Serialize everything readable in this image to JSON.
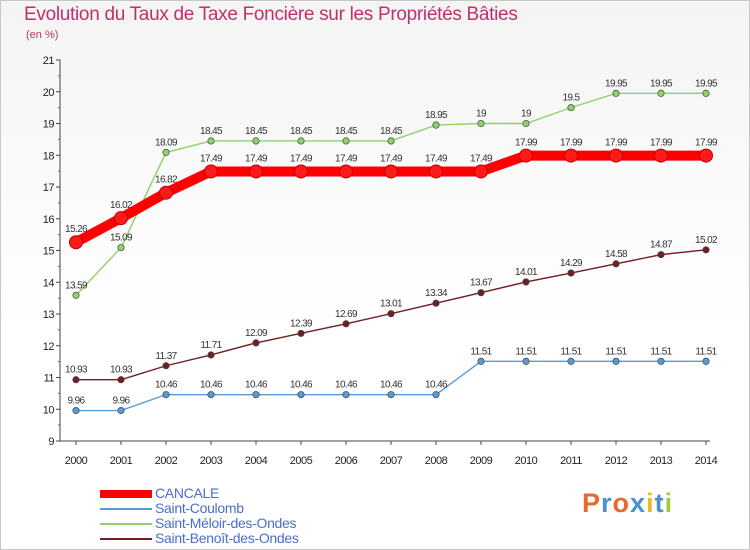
{
  "header": {
    "title": "Evolution du Taux de Taxe Foncière sur les Propriétés Bâties",
    "unit": "(en %)"
  },
  "brand": {
    "name": "Proxiti",
    "colors": [
      "#e9682f",
      "#4a8fd0",
      "#e9682f",
      "#4a8fd0",
      "#f0b821",
      "#4a8fd0",
      "#9fce3d"
    ]
  },
  "chart_data": {
    "type": "line",
    "title": "Evolution du Taux de Taxe Foncière sur les Propriétés Bâties",
    "ylabel": "(en %)",
    "xlabel": "",
    "ylim": [
      9,
      21
    ],
    "yticks": [
      9,
      10,
      11,
      12,
      13,
      14,
      15,
      16,
      17,
      18,
      19,
      20,
      21
    ],
    "categories": [
      "2000",
      "2001",
      "2002",
      "2003",
      "2004",
      "2005",
      "2006",
      "2007",
      "2008",
      "2009",
      "2010",
      "2011",
      "2012",
      "2013",
      "2014"
    ],
    "legend_position": "bottom-left",
    "series": [
      {
        "name": "CANCALE",
        "color": "#ff0000",
        "style": "bold",
        "values": [
          15.26,
          16.02,
          16.82,
          17.49,
          17.49,
          17.49,
          17.49,
          17.49,
          17.49,
          17.49,
          17.99,
          17.99,
          17.99,
          17.99,
          17.99
        ],
        "labels": [
          "15.26",
          "16.02",
          "16.82",
          "17.49",
          "17.49",
          "17.49",
          "17.49",
          "17.49",
          "17.49",
          "17.49",
          "17.99",
          "17.99",
          "17.99",
          "17.99",
          "17.99"
        ]
      },
      {
        "name": "Saint-Coulomb",
        "color": "#5b9bd5",
        "style": "thin",
        "values": [
          9.96,
          9.96,
          10.46,
          10.46,
          10.46,
          10.46,
          10.46,
          10.46,
          10.46,
          11.51,
          11.51,
          11.51,
          11.51,
          11.51,
          11.51
        ],
        "labels": [
          "9.96",
          "9.96",
          "10.46",
          "10.46",
          "10.46",
          "10.46",
          "10.46",
          "10.46",
          "10.46",
          "11.51",
          "11.51",
          "11.51",
          "11.51",
          "11.51",
          "11.51"
        ]
      },
      {
        "name": "Saint-Méloir-des-Ondes",
        "color": "#8fd16a",
        "style": "thin",
        "values": [
          13.59,
          15.09,
          18.09,
          18.45,
          18.45,
          18.45,
          18.45,
          18.45,
          18.95,
          19,
          19,
          19.5,
          19.95,
          19.95,
          19.95
        ],
        "labels": [
          "13.59",
          "15.09",
          "18.09",
          "18.45",
          "18.45",
          "18.45",
          "18.45",
          "18.45",
          "18.95",
          "19",
          "19",
          "19.5",
          "19.95",
          "19.95",
          "19.95"
        ]
      },
      {
        "name": "Saint-Benoît-des-Ondes",
        "color": "#6e1f24",
        "style": "thin",
        "values": [
          10.93,
          10.93,
          11.37,
          11.71,
          12.09,
          12.39,
          12.69,
          13.01,
          13.34,
          13.67,
          14.01,
          14.29,
          14.58,
          14.87,
          15.02
        ],
        "labels": [
          "10.93",
          "10.93",
          "11.37",
          "11.71",
          "12.09",
          "12.39",
          "12.69",
          "13.01",
          "13.34",
          "13.67",
          "14.01",
          "14.29",
          "14.58",
          "14.87",
          "15.02"
        ]
      }
    ]
  }
}
